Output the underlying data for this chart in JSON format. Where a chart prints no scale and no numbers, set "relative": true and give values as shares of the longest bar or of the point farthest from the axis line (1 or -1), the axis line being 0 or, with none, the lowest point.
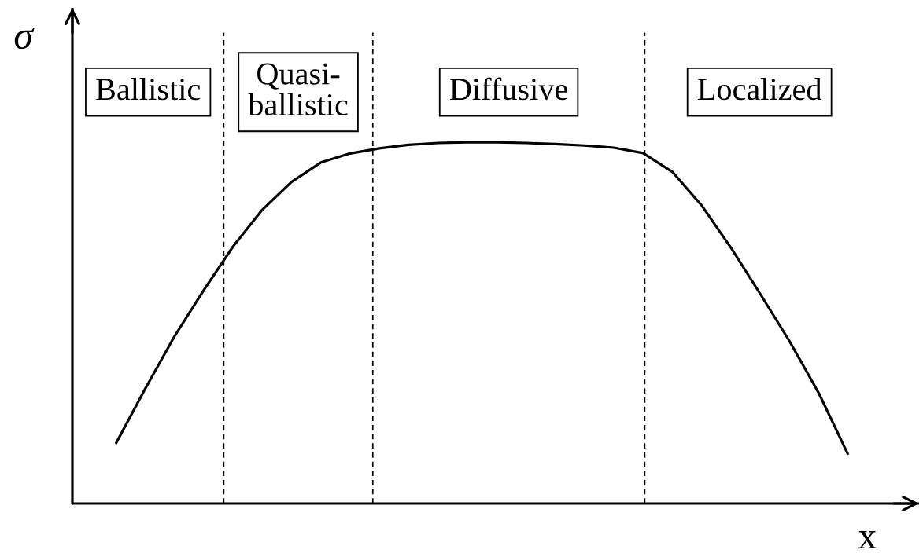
{
  "chart_data": {
    "type": "line",
    "relative": true,
    "xlabel": "x",
    "ylabel": "σ",
    "color": "#000000",
    "categories": [
      null,
      null,
      null,
      null,
      null,
      null,
      null,
      null,
      null,
      null,
      null,
      null,
      null,
      null,
      null,
      null,
      null,
      null,
      null,
      null,
      null,
      null,
      null,
      null,
      null,
      null
    ],
    "values": [
      0.165,
      0.317,
      0.462,
      0.59,
      0.711,
      0.813,
      0.89,
      0.944,
      0.969,
      0.983,
      0.993,
      0.998,
      1.0,
      1.0,
      0.998,
      0.995,
      0.991,
      0.985,
      0.97,
      0.918,
      0.825,
      0.708,
      0.58,
      0.449,
      0.305,
      0.135
    ],
    "annotations": [
      "Ballistic",
      "Quasi-\nballistic",
      "Diffusive",
      "Localized"
    ]
  }
}
